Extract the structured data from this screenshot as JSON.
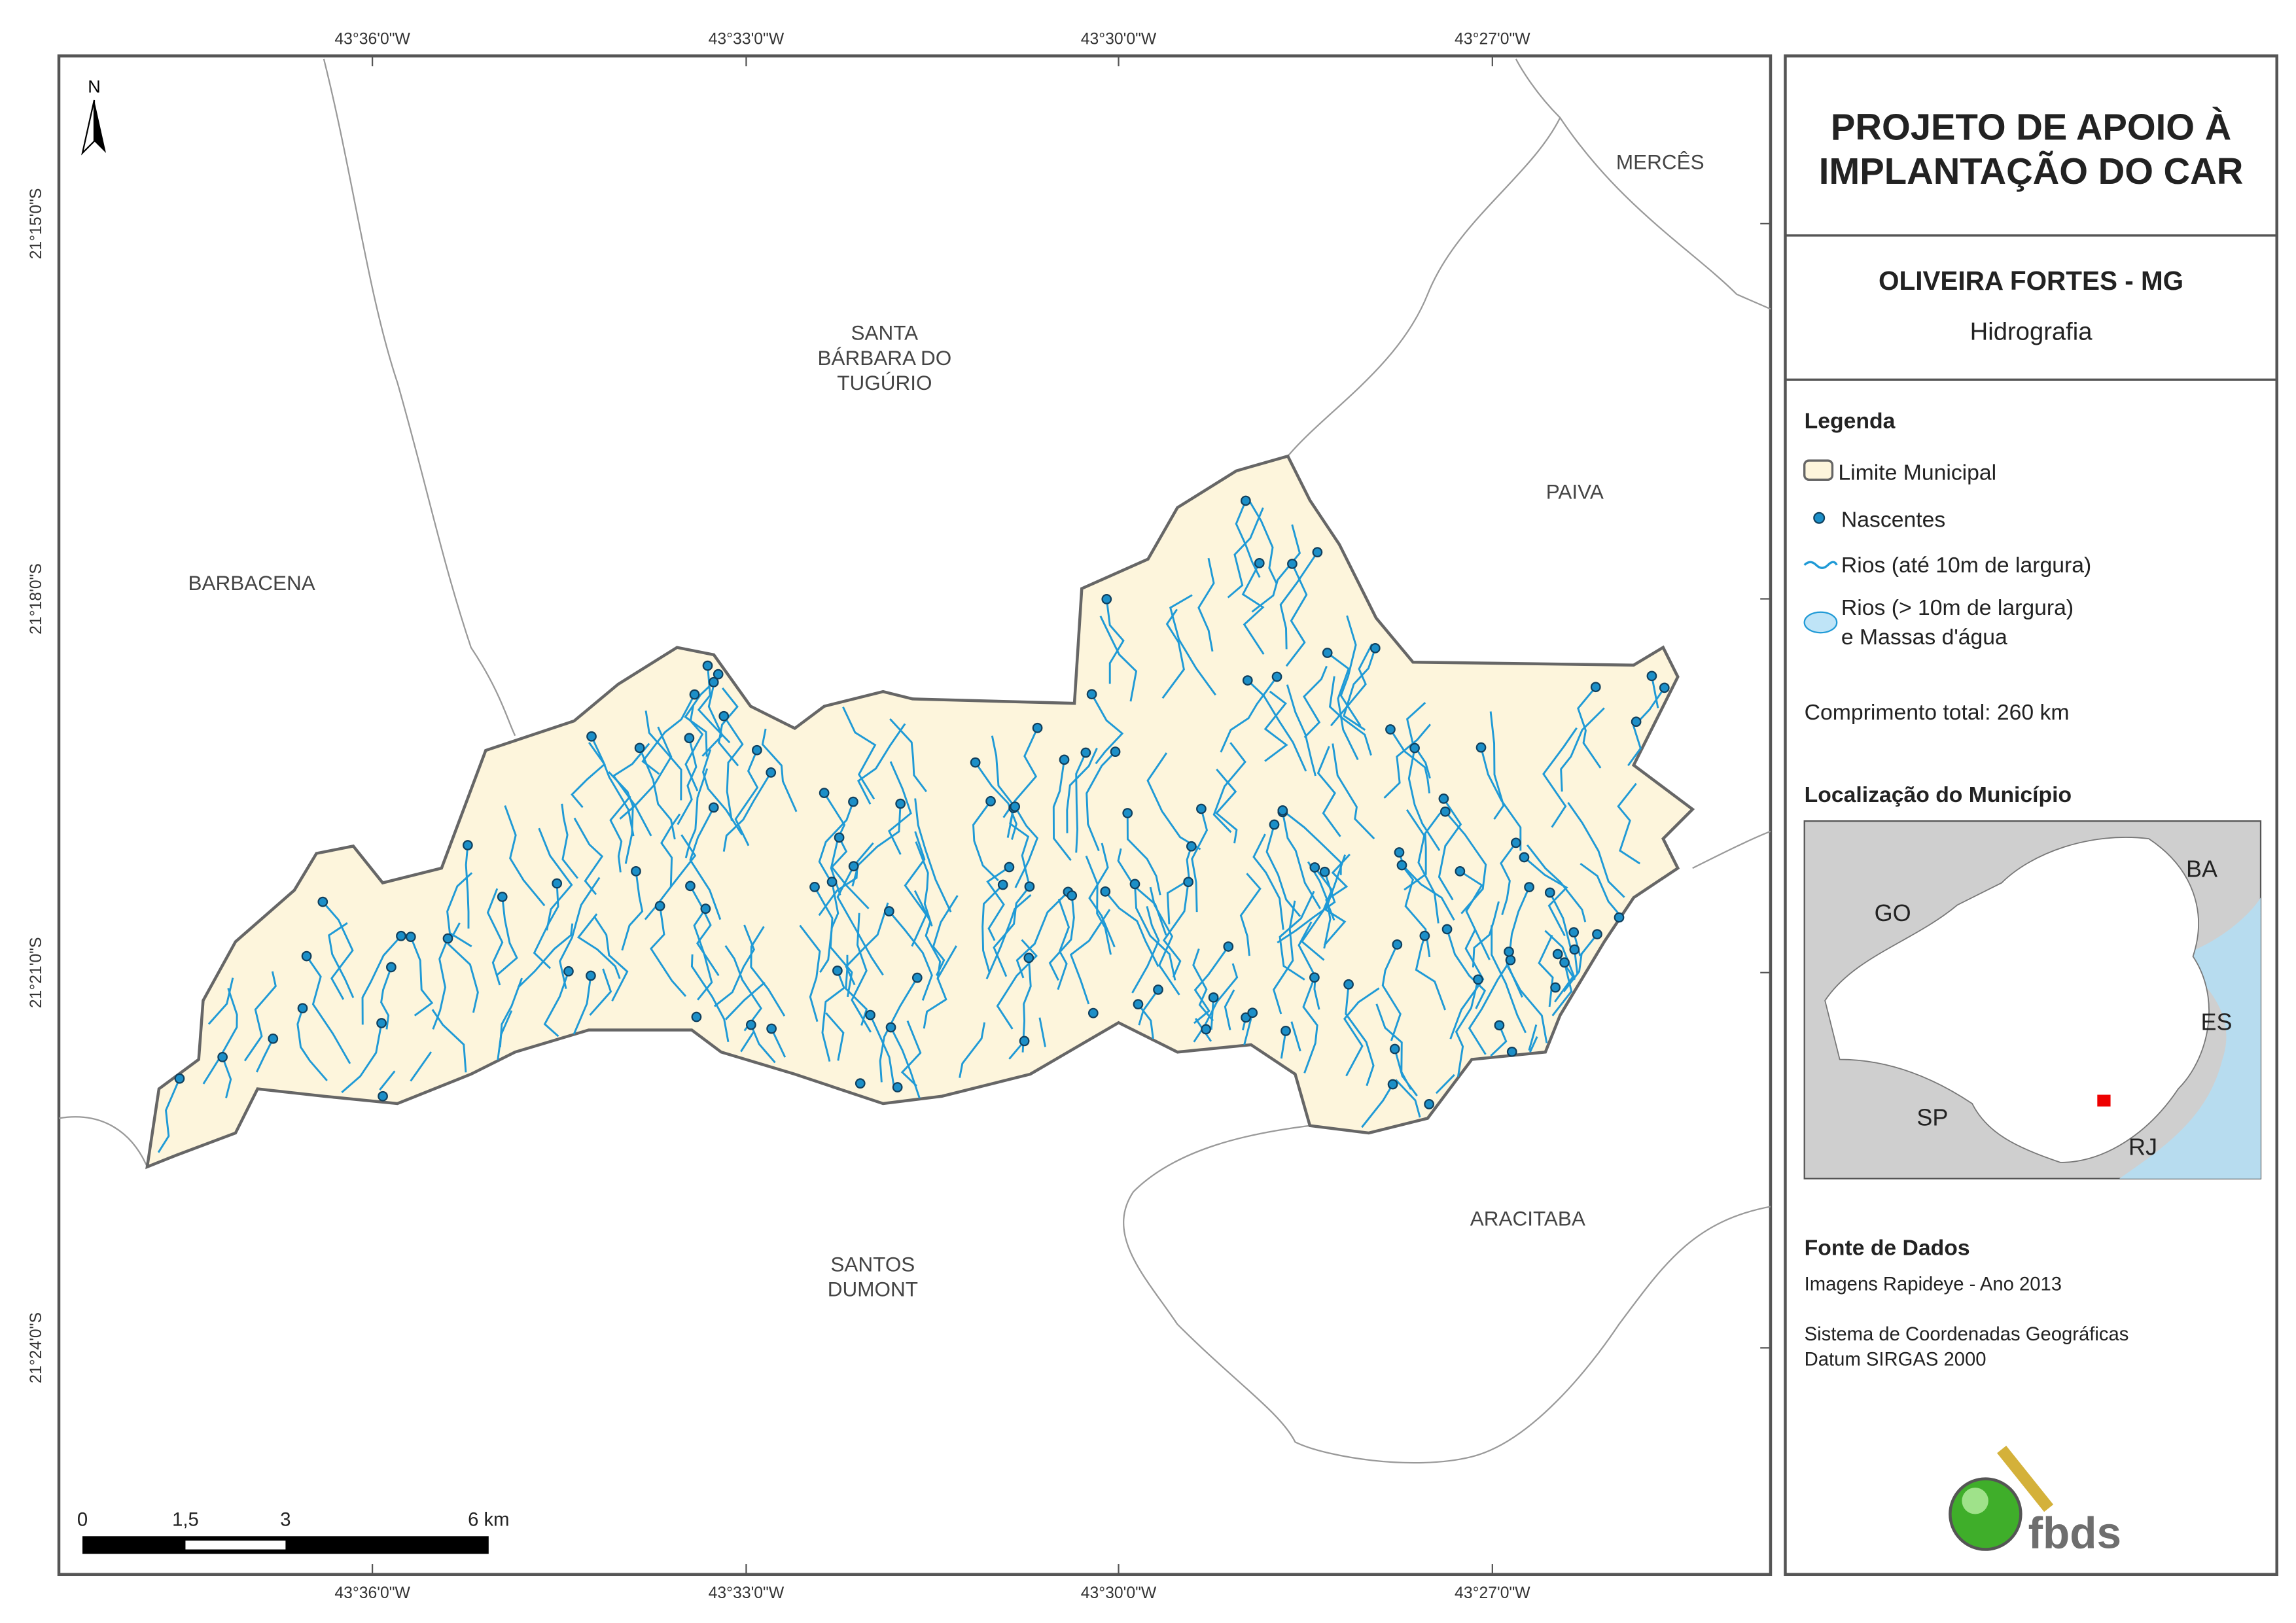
{
  "title": {
    "line1": "PROJETO DE APOIO À",
    "line2": "IMPLANTAÇÃO DO CAR"
  },
  "municipality": "OLIVEIRA FORTES - MG",
  "theme": "Hidrografia",
  "legend": {
    "heading": "Legenda",
    "items": [
      "Limite Municipal",
      "Nascentes",
      "Rios (até 10m de largura)",
      "Rios (> 10m de largura)",
      "e Massas d'água"
    ]
  },
  "total_length": "Comprimento total:  260 km",
  "location": {
    "heading": "Localização do Município",
    "states": [
      "GO",
      "BA",
      "ES",
      "SP",
      "RJ"
    ]
  },
  "source": {
    "heading": "Fonte de Dados",
    "lines": [
      "Imagens Rapideye - Ano 2013",
      "Sistema de Coordenadas Geográficas",
      "Datum SIRGAS 2000"
    ]
  },
  "map": {
    "north": "N",
    "places": [
      {
        "lines": [
          "MERCÊS"
        ]
      },
      {
        "lines": [
          "SANTA",
          "BÁRBARA DO",
          "TUGÚRIO"
        ]
      },
      {
        "lines": [
          "PAIVA"
        ]
      },
      {
        "lines": [
          "BARBACENA"
        ]
      },
      {
        "lines": [
          "ARACITABA"
        ]
      },
      {
        "lines": [
          "SANTOS",
          "DUMONT"
        ]
      }
    ],
    "graticule": {
      "top": [
        "43°36'0\"W",
        "43°33'0\"W",
        "43°30'0\"W",
        "43°27'0\"W"
      ],
      "bottom": [
        "43°36'0\"W",
        "43°33'0\"W",
        "43°30'0\"W",
        "43°27'0\"W"
      ],
      "left": [
        "21°15'0\"S",
        "21°18'0\"S",
        "21°21'0\"S",
        "21°24'0\"S"
      ]
    },
    "scale": [
      "0",
      "1,5",
      "3",
      "6 km"
    ]
  },
  "logo": "fbds"
}
